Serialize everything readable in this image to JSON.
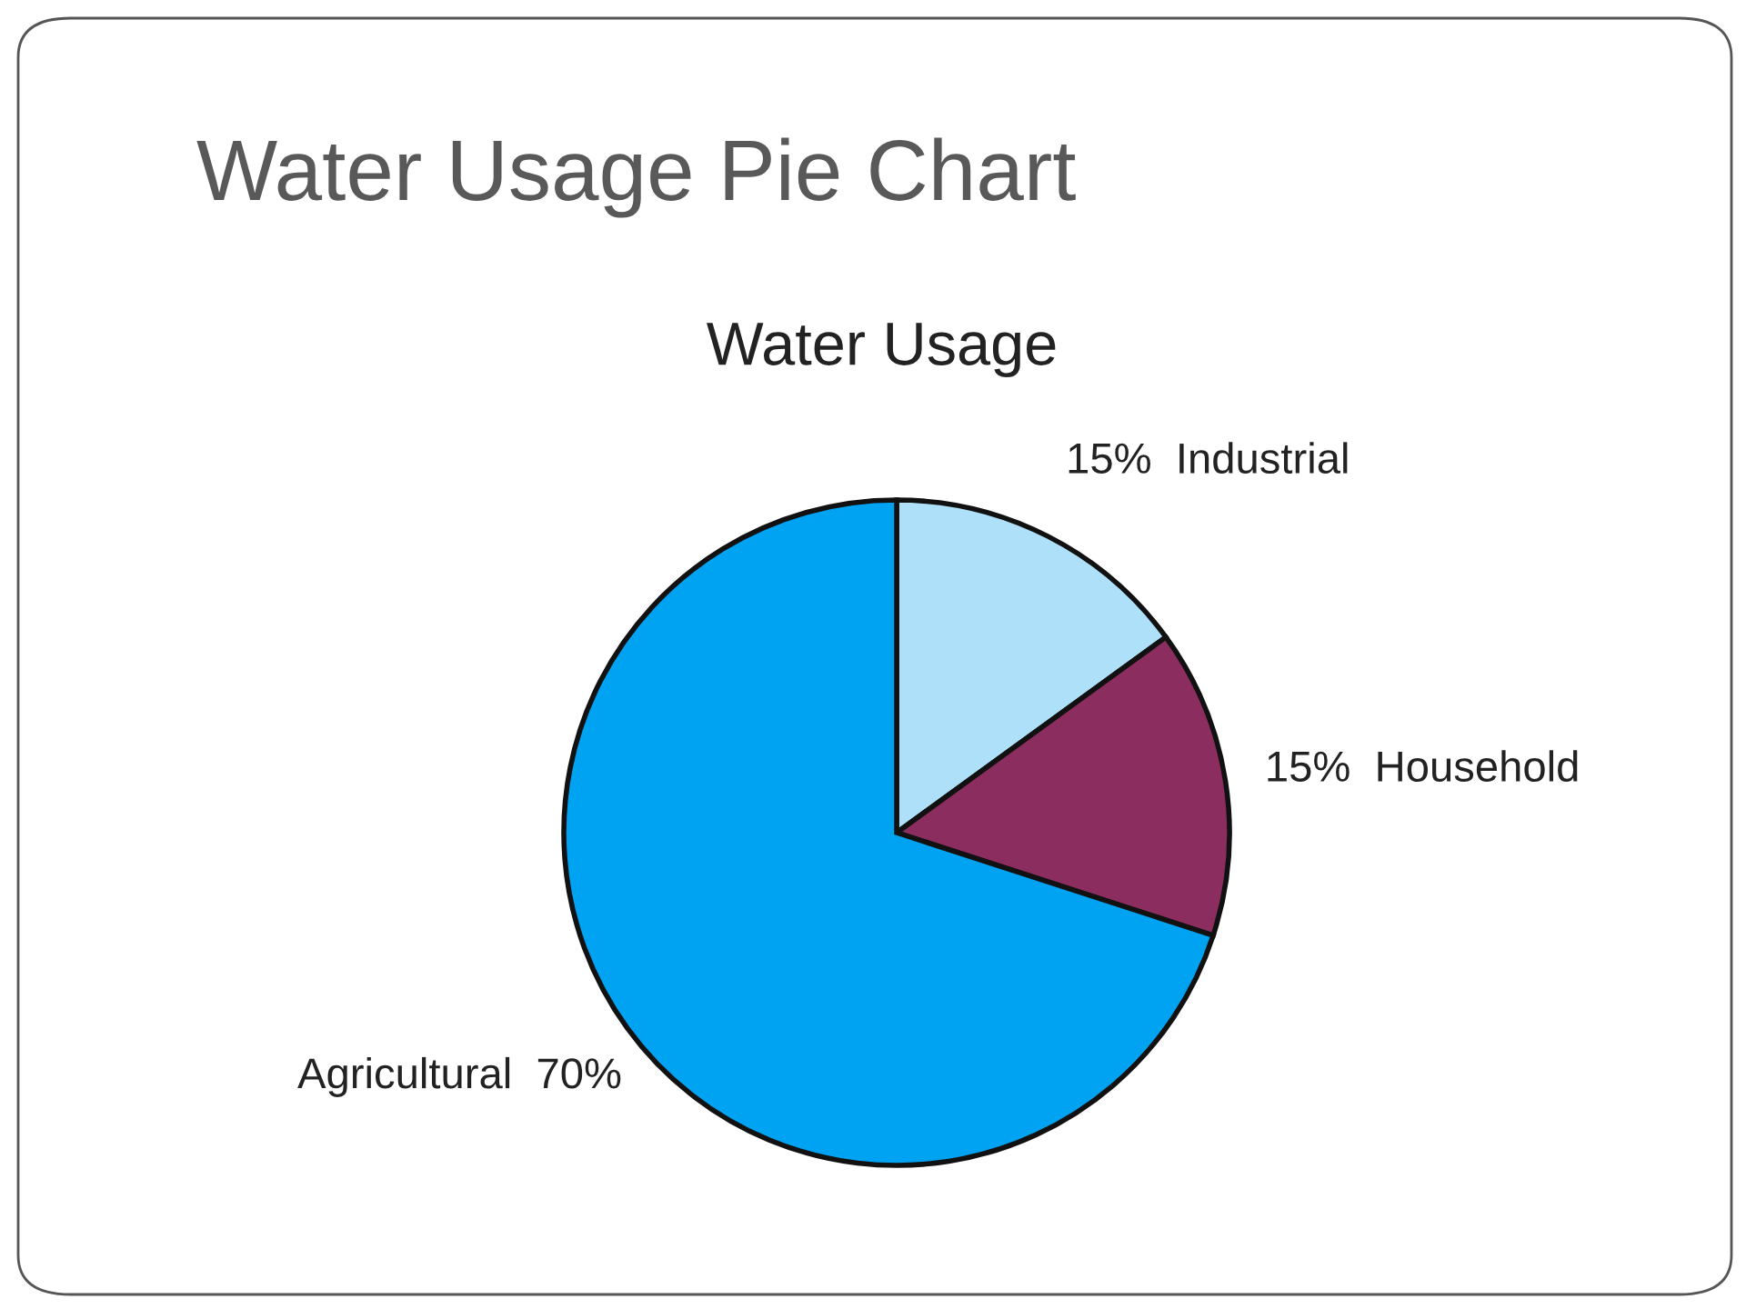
{
  "chart_data": {
    "type": "pie",
    "title": "Water Usage Pie Chart",
    "subtitle": "Water Usage",
    "categories": [
      "Industrial",
      "Household",
      "Agricultural"
    ],
    "values": [
      15,
      15,
      70
    ],
    "value_labels": [
      "15%",
      "15%",
      "70%"
    ],
    "colors": [
      "#aee0fa",
      "#8b2d5e",
      "#00a2f2"
    ]
  }
}
